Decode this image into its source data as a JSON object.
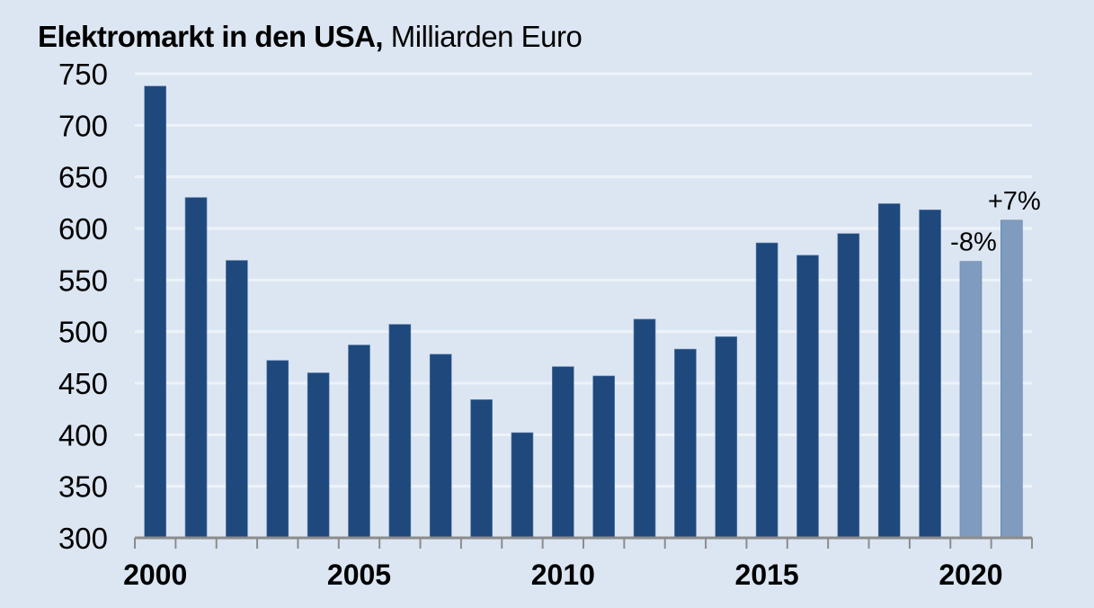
{
  "title": {
    "bold": "Elektromarkt  in den USA,",
    "normal": " Milliarden Euro"
  },
  "colors": {
    "background": "#dce6f2",
    "bar_actual": "#1f497d",
    "bar_forecast": "#7f9bbd",
    "gridline": "#eef3f9",
    "axis": "#8c8c8c"
  },
  "chart_data": {
    "type": "bar",
    "title": "Elektromarkt in den USA, Milliarden Euro",
    "xlabel": "",
    "ylabel": "Milliarden Euro",
    "ylim": [
      300,
      750
    ],
    "yticks": [
      300,
      350,
      400,
      450,
      500,
      550,
      600,
      650,
      700,
      750
    ],
    "xtick_labels": [
      "2000",
      "2005",
      "2010",
      "2015",
      "2020"
    ],
    "grid": true,
    "categories": [
      "2000",
      "2001",
      "2002",
      "2003",
      "2004",
      "2005",
      "2006",
      "2007",
      "2008",
      "2009",
      "2010",
      "2011",
      "2012",
      "2013",
      "2014",
      "2015",
      "2016",
      "2017",
      "2018",
      "2019",
      "2020",
      "2021"
    ],
    "values": [
      738,
      630,
      569,
      472,
      460,
      487,
      507,
      478,
      434,
      402,
      466,
      457,
      512,
      483,
      495,
      586,
      574,
      595,
      624,
      618,
      568,
      608
    ],
    "forecast": [
      false,
      false,
      false,
      false,
      false,
      false,
      false,
      false,
      false,
      false,
      false,
      false,
      false,
      false,
      false,
      false,
      false,
      false,
      false,
      false,
      true,
      true
    ],
    "annotations": [
      {
        "category": "2020",
        "text": "-8%"
      },
      {
        "category": "2021",
        "text": "+7%"
      }
    ]
  }
}
